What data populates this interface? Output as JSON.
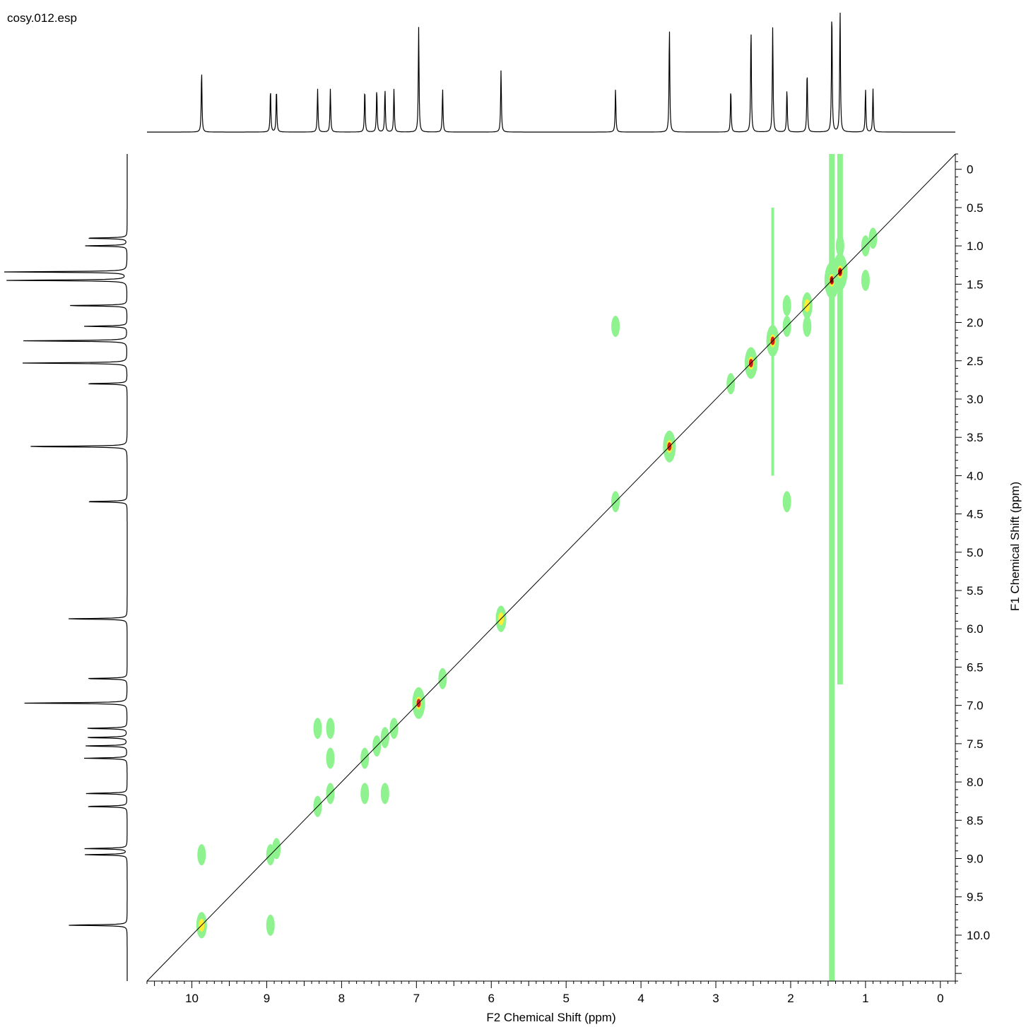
{
  "file_name": "cosy.012.esp",
  "chart_data": {
    "type": "heatmap",
    "subtype": "2D NMR COSY contour plot with 1D projections",
    "xlabel": "F2 Chemical Shift (ppm)",
    "ylabel": "F1 Chemical Shift (ppm)",
    "xlim": [
      10.6,
      -0.2
    ],
    "ylim": [
      -0.2,
      10.6
    ],
    "x_ticks": [
      "10",
      "9",
      "8",
      "7",
      "6",
      "5",
      "4",
      "3",
      "2",
      "1",
      "0"
    ],
    "y_ticks": [
      "0",
      "0.5",
      "1.0",
      "1.5",
      "2.0",
      "2.5",
      "3.0",
      "3.5",
      "4.0",
      "4.5",
      "5.0",
      "5.5",
      "6.0",
      "6.5",
      "7.0",
      "7.5",
      "8.0",
      "8.5",
      "9.0",
      "9.5",
      "10.0"
    ],
    "colors": {
      "low": "#8ef28e",
      "mid": "#ffee33",
      "high": "#d42020",
      "peak": "#8b0000",
      "line": "#000000"
    },
    "diagonal_peaks": [
      {
        "x": 9.87,
        "y": 9.87,
        "i": 2
      },
      {
        "x": 8.95,
        "y": 8.95,
        "i": 1
      },
      {
        "x": 8.87,
        "y": 8.87,
        "i": 1
      },
      {
        "x": 8.32,
        "y": 8.32,
        "i": 1
      },
      {
        "x": 8.15,
        "y": 8.15,
        "i": 1
      },
      {
        "x": 7.69,
        "y": 7.69,
        "i": 1
      },
      {
        "x": 7.53,
        "y": 7.53,
        "i": 1
      },
      {
        "x": 7.42,
        "y": 7.42,
        "i": 1
      },
      {
        "x": 7.3,
        "y": 7.3,
        "i": 1
      },
      {
        "x": 6.97,
        "y": 6.97,
        "i": 3
      },
      {
        "x": 6.65,
        "y": 6.65,
        "i": 1
      },
      {
        "x": 5.87,
        "y": 5.87,
        "i": 2
      },
      {
        "x": 4.34,
        "y": 4.34,
        "i": 1
      },
      {
        "x": 3.62,
        "y": 3.62,
        "i": 3
      },
      {
        "x": 2.8,
        "y": 2.8,
        "i": 1
      },
      {
        "x": 2.53,
        "y": 2.53,
        "i": 3
      },
      {
        "x": 2.24,
        "y": 2.24,
        "i": 3
      },
      {
        "x": 2.05,
        "y": 2.05,
        "i": 1
      },
      {
        "x": 1.78,
        "y": 1.78,
        "i": 2
      },
      {
        "x": 1.45,
        "y": 1.45,
        "i": 4
      },
      {
        "x": 1.34,
        "y": 1.34,
        "i": 4
      },
      {
        "x": 1.0,
        "y": 1.0,
        "i": 1
      },
      {
        "x": 0.9,
        "y": 0.9,
        "i": 1
      }
    ],
    "cross_peaks": [
      {
        "x": 9.87,
        "y": 8.95
      },
      {
        "x": 8.95,
        "y": 9.87
      },
      {
        "x": 8.32,
        "y": 7.3
      },
      {
        "x": 8.15,
        "y": 7.3
      },
      {
        "x": 8.15,
        "y": 7.69
      },
      {
        "x": 7.69,
        "y": 8.15
      },
      {
        "x": 7.42,
        "y": 8.15
      },
      {
        "x": 4.34,
        "y": 2.05
      },
      {
        "x": 2.05,
        "y": 4.34
      },
      {
        "x": 1.78,
        "y": 2.05
      },
      {
        "x": 2.05,
        "y": 1.78
      },
      {
        "x": 1.0,
        "y": 1.45
      },
      {
        "x": 1.34,
        "y": 1.0
      }
    ]
  }
}
